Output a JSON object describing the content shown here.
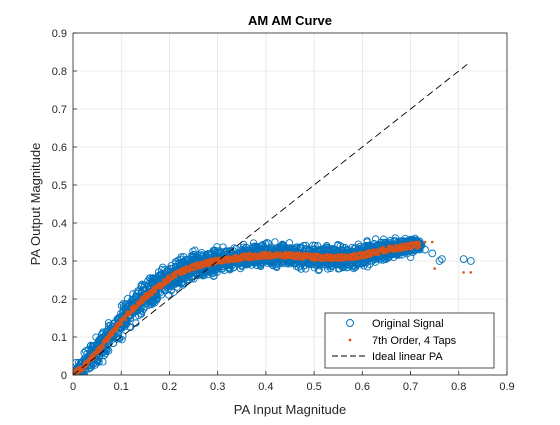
{
  "chart_data": {
    "type": "scatter",
    "title": "AM AM Curve",
    "xlabel": "PA Input Magnitude",
    "ylabel": "PA Output Magnitude",
    "xlim": [
      0,
      0.9
    ],
    "ylim": [
      0,
      0.9
    ],
    "xticks": [
      "0",
      "0.1",
      "0.2",
      "0.3",
      "0.4",
      "0.5",
      "0.6",
      "0.7",
      "0.8",
      "0.9"
    ],
    "yticks": [
      "0",
      "0.1",
      "0.2",
      "0.3",
      "0.4",
      "0.5",
      "0.6",
      "0.7",
      "0.8",
      "0.9"
    ],
    "grid": true,
    "legend_position": "bottom-right",
    "series": [
      {
        "name": "Original Signal",
        "marker": "open-circle",
        "color": "#0072BD",
        "trend": {
          "x": [
            0,
            0.02,
            0.05,
            0.08,
            0.1,
            0.12,
            0.15,
            0.18,
            0.2,
            0.22,
            0.25,
            0.28,
            0.3,
            0.33,
            0.35,
            0.4,
            0.45,
            0.5,
            0.55,
            0.6,
            0.65,
            0.7,
            0.72
          ],
          "y": [
            0,
            0.02,
            0.06,
            0.11,
            0.14,
            0.17,
            0.205,
            0.235,
            0.255,
            0.27,
            0.285,
            0.295,
            0.3,
            0.306,
            0.31,
            0.315,
            0.315,
            0.31,
            0.308,
            0.315,
            0.33,
            0.34,
            0.342
          ]
        },
        "spread": [
          0.015,
          0.03,
          0.04,
          0.045,
          0.045,
          0.045,
          0.045,
          0.04,
          0.04,
          0.035,
          0.035,
          0.035,
          0.035,
          0.03,
          0.03,
          0.03,
          0.03,
          0.03,
          0.03,
          0.03,
          0.025,
          0.02,
          0.015
        ],
        "outliers": [
          {
            "x": 0.73,
            "y": 0.33
          },
          {
            "x": 0.745,
            "y": 0.32
          },
          {
            "x": 0.76,
            "y": 0.3
          },
          {
            "x": 0.765,
            "y": 0.305
          },
          {
            "x": 0.81,
            "y": 0.305
          },
          {
            "x": 0.825,
            "y": 0.3
          },
          {
            "x": 0.7,
            "y": 0.31
          },
          {
            "x": 0.72,
            "y": 0.34
          }
        ]
      },
      {
        "name": "7th Order, 4 Taps",
        "marker": "dot",
        "color": "#D95319",
        "x": [
          0,
          0.02,
          0.05,
          0.08,
          0.1,
          0.12,
          0.15,
          0.18,
          0.2,
          0.22,
          0.25,
          0.28,
          0.3,
          0.33,
          0.35,
          0.4,
          0.45,
          0.5,
          0.55,
          0.6,
          0.65,
          0.7,
          0.72
        ],
        "y": [
          0,
          0.02,
          0.06,
          0.11,
          0.14,
          0.17,
          0.205,
          0.235,
          0.255,
          0.27,
          0.285,
          0.295,
          0.3,
          0.306,
          0.31,
          0.315,
          0.315,
          0.31,
          0.308,
          0.315,
          0.33,
          0.34,
          0.342
        ],
        "outliers": [
          {
            "x": 0.73,
            "y": 0.35
          },
          {
            "x": 0.745,
            "y": 0.35
          },
          {
            "x": 0.75,
            "y": 0.28
          },
          {
            "x": 0.81,
            "y": 0.27
          },
          {
            "x": 0.825,
            "y": 0.27
          }
        ]
      },
      {
        "name": "Ideal linear PA",
        "marker": "dashed-line",
        "color": "#000000",
        "x": [
          0,
          0.82
        ],
        "y": [
          0,
          0.82
        ]
      }
    ]
  }
}
